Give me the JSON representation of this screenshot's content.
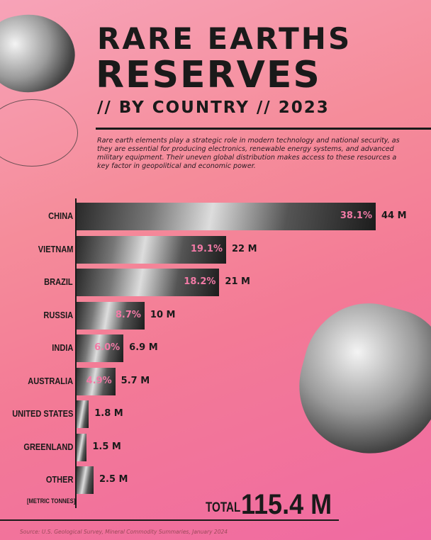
{
  "title_line1": "RARE EARTHS",
  "title_line2": "RESERVES",
  "subtitle": "// BY COUNTRY // 2023",
  "description": "Rare earth elements play a strategic role in modern technology and national security, as they are essential for producing electronics, renewable energy systems, and advanced military equipment. Their uneven global distribution makes access to these resources a key factor in geopolitical and economic power.",
  "unit_label": "[METRIC TONNES]",
  "total_label": "TOTAL",
  "total_value": "115.4 M",
  "source": "Source: U.S. Geological Survey, Mineral Commodity Summaries, January 2024",
  "colors": {
    "accent": "#f27aa6",
    "text": "#1a1a1a"
  },
  "chart_data": {
    "type": "bar",
    "orientation": "horizontal",
    "title": "Rare Earths Reserves by Country 2023",
    "xlabel": "[METRIC TONNES]",
    "categories": [
      "CHINA",
      "VIETNAM",
      "BRAZIL",
      "RUSSIA",
      "INDIA",
      "AUSTRALIA",
      "UNITED STATES",
      "GREENLAND",
      "OTHER"
    ],
    "values": [
      44,
      22,
      21,
      10,
      6.9,
      5.7,
      1.8,
      1.5,
      2.5
    ],
    "value_labels": [
      "44 M",
      "22 M",
      "21 M",
      "10 M",
      "6.9 M",
      "5.7 M",
      "1.8 M",
      "1.5 M",
      "2.5 M"
    ],
    "percent_labels": [
      "38.1%",
      "19.1%",
      "18.2%",
      "8.7%",
      "6.0%",
      "4.9%",
      "",
      "",
      ""
    ],
    "xlim": [
      0,
      44
    ]
  }
}
